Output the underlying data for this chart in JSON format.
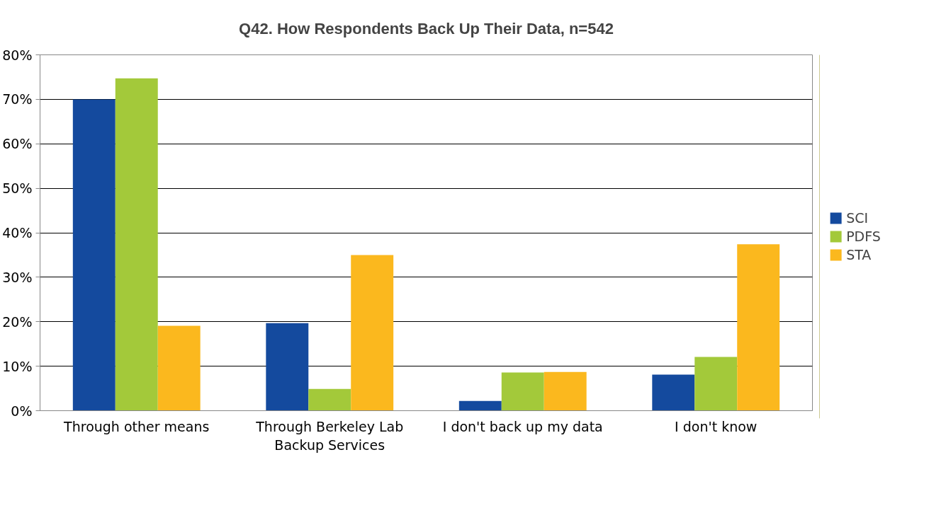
{
  "chart_data": {
    "type": "bar",
    "title": "Q42. How Respondents Back Up Their Data, n=542",
    "categories": [
      "Through other means",
      "Through Berkeley Lab Backup Services",
      "I don't back up my data",
      "I don't know"
    ],
    "series": [
      {
        "name": "SCI",
        "color": "#144a9e",
        "values": [
          70.0,
          19.7,
          2.2,
          8.1
        ]
      },
      {
        "name": "PDFS",
        "color": "#a3c93a",
        "values": [
          74.7,
          4.9,
          8.6,
          12.1
        ]
      },
      {
        "name": "STA",
        "color": "#fbb81e",
        "values": [
          19.1,
          35.0,
          8.7,
          37.4
        ]
      }
    ],
    "ylim": [
      0,
      80
    ],
    "yticks": [
      {
        "value": 0,
        "label": "0%"
      },
      {
        "value": 10,
        "label": "10%"
      },
      {
        "value": 20,
        "label": "20%"
      },
      {
        "value": 30,
        "label": "30%"
      },
      {
        "value": 40,
        "label": "40%"
      },
      {
        "value": 50,
        "label": "50%"
      },
      {
        "value": 60,
        "label": "60%"
      },
      {
        "value": 70,
        "label": "70%"
      },
      {
        "value": 80,
        "label": "80%"
      }
    ],
    "grid": "y",
    "legend": "right"
  }
}
